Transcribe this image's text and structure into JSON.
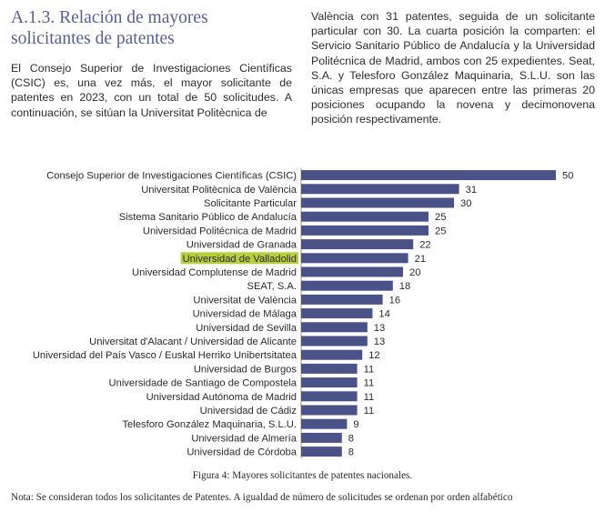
{
  "section": {
    "heading": "A.1.3. Relación de mayores solicitantes de patentes",
    "paragraph_left": "El Consejo Superior de Investigaciones Científicas (CSIC) es, una vez más, el mayor solicitante de patentes en 2023, con un total de 50 solicitudes. A continuación, se sitúan la Universitat Politècnica de",
    "paragraph_right": "València con 31 patentes, seguida de un solicitante particular con 30. La cuarta posición la comparten: el Servicio Sanitario Público de Andalucía y la Universidad Politécnica de Madrid, ambos con 25 expedientes. Seat, S.A. y Telesforo González Maquinaria, S.L.U. son las únicas empresas que aparecen entre las primeras 20 posiciones ocupando la novena y decimonovena posición respectivamente."
  },
  "figure": {
    "caption": "Figura 4: Mayores solicitantes de patentes nacionales.",
    "note": "Nota: Se consideran todos los solicitantes de Patentes. A igualdad de número de solicitudes se ordenan por orden alfabético"
  },
  "chart_data": {
    "type": "bar",
    "orientation": "horizontal",
    "title": "",
    "xlabel": "",
    "ylabel": "",
    "xlim": [
      0,
      50
    ],
    "grid": false,
    "bar_color": "#4a5287",
    "highlight_color": "#b7cf3d",
    "highlighted_category": "Universidad de Valladolid",
    "categories": [
      "Consejo Superior de Investigaciones Científicas (CSIC)",
      "Universitat Politècnica de València",
      "Solicitante Particular",
      "Sistema Sanitario Público de Andalucía",
      "Universidad Politécnica de Madrid",
      "Universidad de Granada",
      "Universidad de Valladolid",
      "Universidad Complutense de Madrid",
      "SEAT, S.A.",
      "Universitat de València",
      "Universidad de Málaga",
      "Universidad de Sevilla",
      "Universitat d'Alacant / Universidad de Alicante",
      "Universidad del País Vasco / Euskal Herriko Unibertsitatea",
      "Universidad de Burgos",
      "Universidade de Santiago de Compostela",
      "Universidad Autónoma de Madrid",
      "Universidad de Cádiz",
      "Telesforo González Maquinaria, S.L.U.",
      "Universidad de Almería",
      "Universidad de Córdoba"
    ],
    "values": [
      50,
      31,
      30,
      25,
      25,
      22,
      21,
      20,
      18,
      16,
      14,
      13,
      13,
      12,
      11,
      11,
      11,
      11,
      9,
      8,
      8
    ]
  }
}
